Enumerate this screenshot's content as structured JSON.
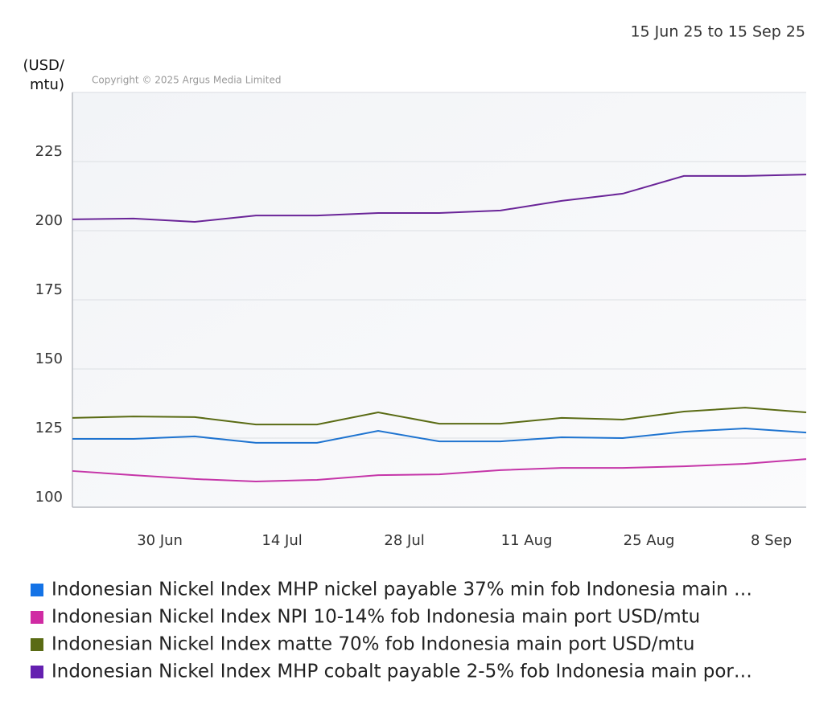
{
  "chart_data": {
    "type": "line",
    "date_range": "15 Jun 25 to 15 Sep 25",
    "y_label": "(USD/ mtu)",
    "copyright": "Copyright © 2025 Argus Media Limited",
    "x": [
      "2025-06-20",
      "2025-06-27",
      "2025-07-04",
      "2025-07-11",
      "2025-07-18",
      "2025-07-25",
      "2025-08-01",
      "2025-08-08",
      "2025-08-15",
      "2025-08-22",
      "2025-08-29",
      "2025-09-05",
      "2025-09-12"
    ],
    "xlim": [
      "2025-06-20",
      "2025-09-12"
    ],
    "xticks": [
      {
        "value": "2025-06-30",
        "label": "30 Jun"
      },
      {
        "value": "2025-07-14",
        "label": "14 Jul"
      },
      {
        "value": "2025-07-28",
        "label": "28 Jul"
      },
      {
        "value": "2025-08-11",
        "label": "11 Aug"
      },
      {
        "value": "2025-08-25",
        "label": "25 Aug"
      },
      {
        "value": "2025-09-08",
        "label": "8 Sep"
      }
    ],
    "ylim": [
      100,
      250
    ],
    "yticks": [
      100,
      125,
      150,
      175,
      200,
      225
    ],
    "grid": true,
    "series": [
      {
        "name": "Indonesian Nickel Index MHP nickel payable 37% min fob Indonesia main …",
        "color": "#1f74d0",
        "legend_color": "#1473e6",
        "values": [
          124.7,
          124.7,
          125.6,
          123.3,
          123.3,
          127.6,
          123.8,
          123.8,
          125.3,
          125.0,
          127.3,
          128.5,
          127.0
        ]
      },
      {
        "name": "Indonesian Nickel Index NPI 10-14% fob Indonesia main port USD/mtu",
        "color": "#c535a8",
        "legend_color": "#d02ba3",
        "values": [
          113.1,
          111.6,
          110.2,
          109.3,
          109.9,
          111.6,
          111.9,
          113.4,
          114.2,
          114.2,
          114.8,
          115.7,
          117.4
        ]
      },
      {
        "name": "Indonesian Nickel Index matte 70% fob Indonesia main port USD/mtu",
        "color": "#5a6b14",
        "legend_color": "#5a6b14",
        "values": [
          132.3,
          132.8,
          132.6,
          129.9,
          129.9,
          134.3,
          130.2,
          130.2,
          132.3,
          131.7,
          134.6,
          136.0,
          134.3
        ]
      },
      {
        "name": "Indonesian Nickel Index MHP cobalt payable 2-5% fob Indonesia main por…",
        "color": "#6a2598",
        "legend_color": "#6420b0",
        "values": [
          204.1,
          204.4,
          203.2,
          205.5,
          205.5,
          206.4,
          206.4,
          207.3,
          210.8,
          213.4,
          219.8,
          219.8,
          220.3
        ]
      }
    ]
  }
}
